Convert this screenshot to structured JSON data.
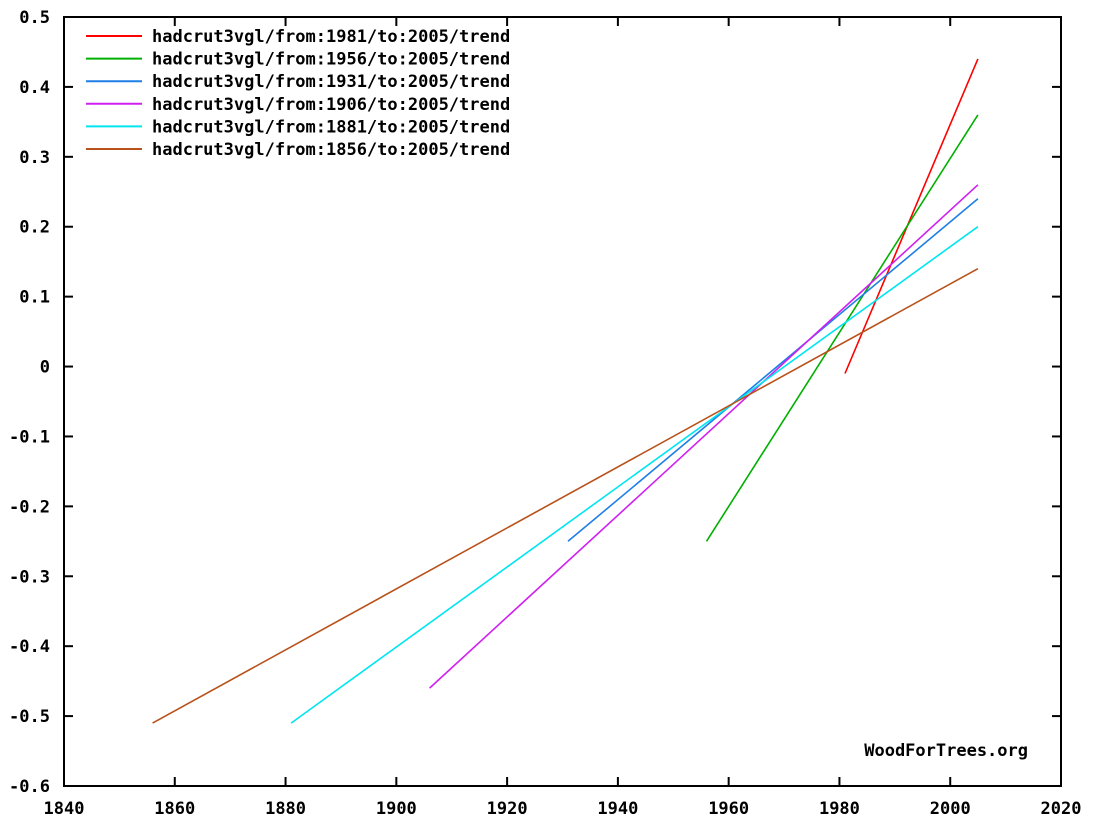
{
  "chart_data": {
    "type": "line",
    "title": "",
    "xlabel": "",
    "ylabel": "",
    "xlim": [
      1840,
      2020
    ],
    "ylim": [
      -0.6,
      0.5
    ],
    "x_ticks": [
      1840,
      1860,
      1880,
      1900,
      1920,
      1940,
      1960,
      1980,
      2000,
      2020
    ],
    "y_ticks": [
      0.5,
      0.4,
      0.3,
      0.2,
      0.1,
      0,
      -0.1,
      -0.2,
      -0.3,
      -0.4,
      -0.5,
      -0.6
    ],
    "x_tick_labels": [
      "1840",
      "1860",
      "1880",
      "1900",
      "1920",
      "1940",
      "1960",
      "1980",
      "2000",
      "2020"
    ],
    "y_tick_labels": [
      "0.5",
      "0.4",
      "0.3",
      "0.2",
      "0.1",
      "0",
      "-0.1",
      "-0.2",
      "-0.3",
      "-0.4",
      "-0.5",
      "-0.6"
    ],
    "grid": false,
    "legend_position": "top-left",
    "series": [
      {
        "name": "hadcrut3vgl/from:1981/to:2005/trend",
        "color": "#ff0000",
        "x": [
          1981,
          2005
        ],
        "y": [
          -0.01,
          0.44
        ]
      },
      {
        "name": "hadcrut3vgl/from:1956/to:2005/trend",
        "color": "#00b000",
        "x": [
          1956,
          2005
        ],
        "y": [
          -0.25,
          0.36
        ]
      },
      {
        "name": "hadcrut3vgl/from:1931/to:2005/trend",
        "color": "#1e7ee6",
        "x": [
          1931,
          2005
        ],
        "y": [
          -0.25,
          0.24
        ]
      },
      {
        "name": "hadcrut3vgl/from:1906/to:2005/trend",
        "color": "#d020f0",
        "x": [
          1906,
          2005
        ],
        "y": [
          -0.46,
          0.26
        ]
      },
      {
        "name": "hadcrut3vgl/from:1881/to:2005/trend",
        "color": "#00e5ee",
        "x": [
          1881,
          2005
        ],
        "y": [
          -0.51,
          0.2
        ]
      },
      {
        "name": "hadcrut3vgl/from:1856/to:2005/trend",
        "color": "#b8521a",
        "x": [
          1856,
          2005
        ],
        "y": [
          -0.51,
          0.14
        ]
      }
    ],
    "watermark": "WoodForTrees.org"
  }
}
